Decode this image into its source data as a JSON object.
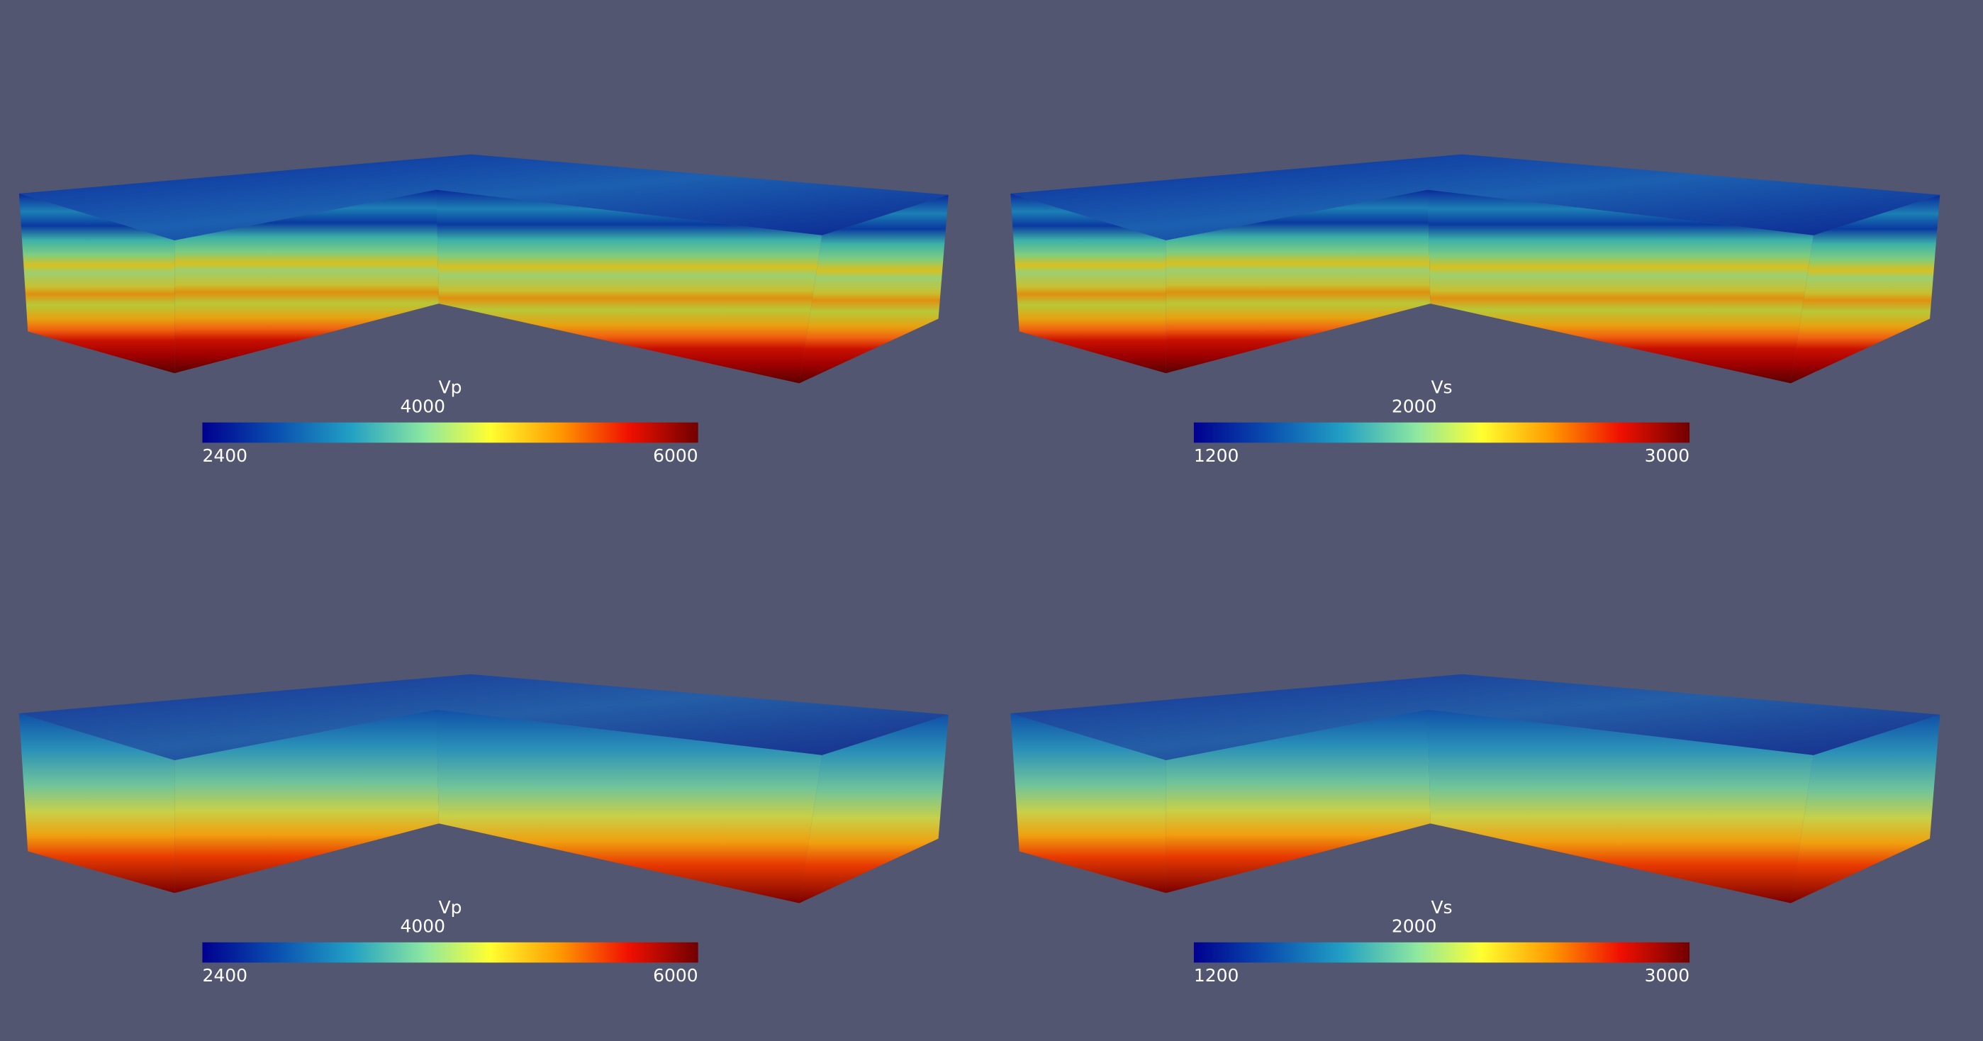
{
  "panels": [
    {
      "colorbar": {
        "title": "Vp",
        "min": 2400,
        "mid": 4000,
        "max": 6000
      }
    },
    {
      "colorbar": {
        "title": "Vs",
        "min": 1200,
        "mid": 2000,
        "max": 3000
      }
    },
    {
      "colorbar": {
        "title": "Vp",
        "min": 2400,
        "mid": 4000,
        "max": 6000
      }
    },
    {
      "colorbar": {
        "title": "Vs",
        "min": 1200,
        "mid": 2000,
        "max": 3000
      }
    }
  ]
}
